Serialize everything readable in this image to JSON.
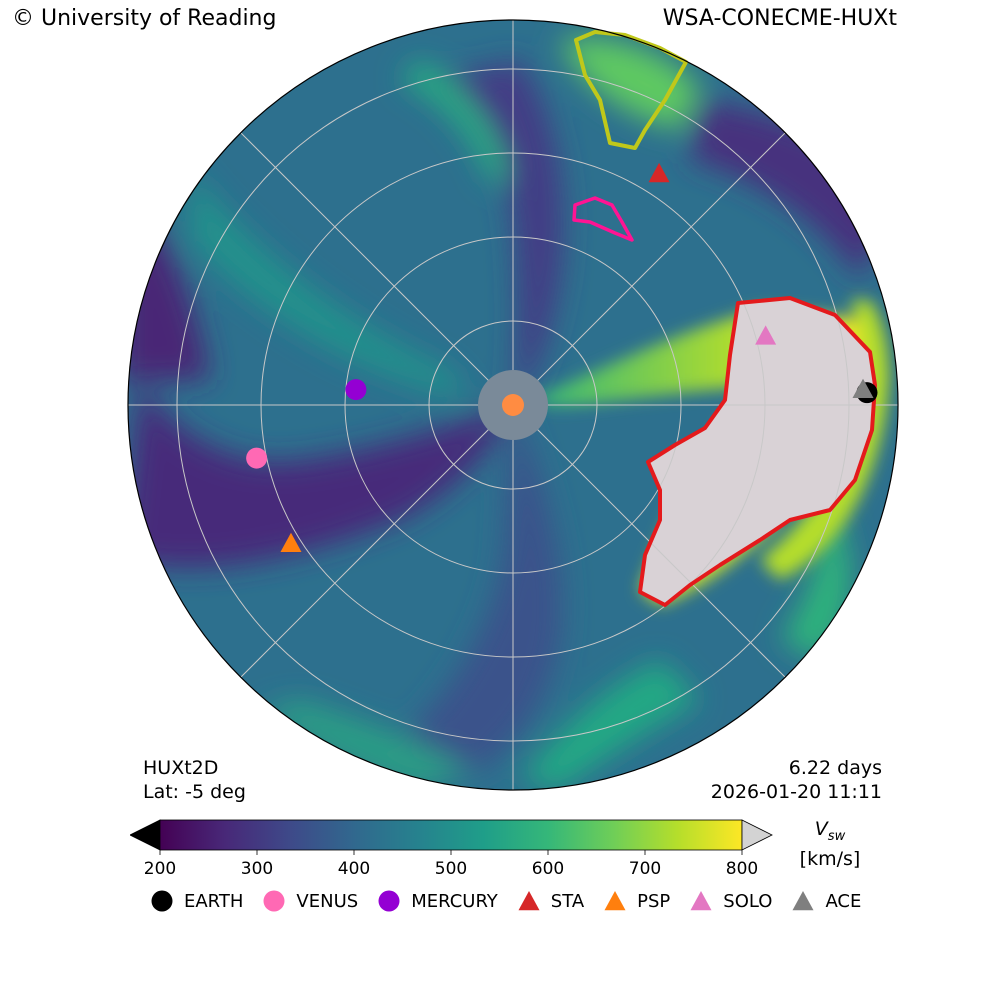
{
  "header": {
    "copyright": "© University of Reading",
    "model": "WSA-CONECME-HUXt"
  },
  "info": {
    "model_name": "HUXt2D",
    "latitude": "Lat:  -5 deg",
    "elapsed": "6.22 days",
    "datetime": "2026-01-20 11:11"
  },
  "colorbar": {
    "symbol": "V",
    "subscript": "sw",
    "units": "[km/s]",
    "min": 200,
    "max": 800,
    "ticks": [
      "200",
      "300",
      "400",
      "500",
      "600",
      "700",
      "800"
    ],
    "colors": [
      "#440154",
      "#482878",
      "#3e4989",
      "#31688e",
      "#26828e",
      "#1f9e89",
      "#35b779",
      "#6ece58",
      "#b5de2b",
      "#fde725"
    ],
    "under_color": "#000000",
    "over_color": "#d3d3d3"
  },
  "chart_data": {
    "type": "polar-heatmap",
    "variable": "solar wind speed",
    "bodies": [
      {
        "name": "EARTH",
        "marker": "circle",
        "color": "#000000",
        "longitude_deg": 2,
        "r_frac": 0.92
      },
      {
        "name": "VENUS",
        "marker": "circle",
        "color": "#ff69b4",
        "longitude_deg": 191.7,
        "r_frac": 0.68
      },
      {
        "name": "MERCURY",
        "marker": "circle",
        "color": "#9400d3",
        "longitude_deg": 174.4,
        "r_frac": 0.41
      },
      {
        "name": "STA",
        "marker": "triangle",
        "color": "#d62728",
        "longitude_deg": 57.7,
        "r_frac": 0.71
      },
      {
        "name": "PSP",
        "marker": "triangle",
        "color": "#ff7f0e",
        "longitude_deg": 212,
        "r_frac": 0.68
      },
      {
        "name": "SOLO",
        "marker": "triangle",
        "color": "#e377c2",
        "longitude_deg": 15.2,
        "r_frac": 0.68
      },
      {
        "name": "ACE",
        "marker": "triangle",
        "color": "#7f7f7f",
        "longitude_deg": 2.5,
        "r_frac": 0.91
      }
    ],
    "sun_color": "#ff8c42",
    "cme_boundary_colors": [
      "#e41a1c",
      "#ff1493",
      "#c8c800"
    ]
  }
}
